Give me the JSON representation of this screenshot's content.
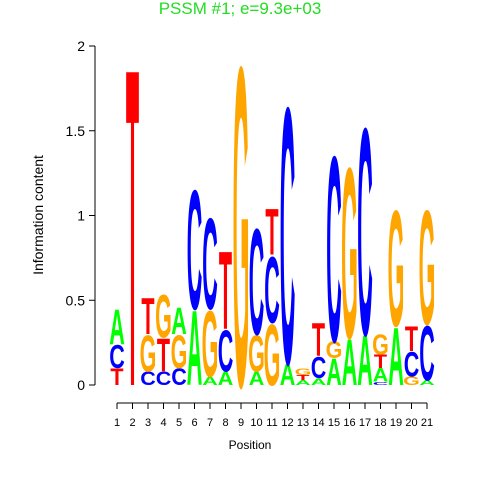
{
  "chart_data": {
    "type": "sequence-logo",
    "title": "PSSM #1; e=9.3e+03",
    "x_label": "Position",
    "y_label": "Information content",
    "xlim": [
      1,
      21
    ],
    "xticks": [
      1,
      2,
      3,
      4,
      5,
      6,
      7,
      8,
      9,
      10,
      11,
      12,
      13,
      14,
      15,
      16,
      17,
      18,
      19,
      20,
      21
    ],
    "ylim": [
      0,
      2
    ],
    "yticks": [
      0,
      0.5,
      1,
      1.5,
      2
    ],
    "letter_colors": {
      "A": "#00ff00",
      "C": "#0000ff",
      "G": "#ffa500",
      "T": "#ff0000"
    },
    "stacks": [
      {
        "letters": [
          "T",
          "C",
          "A"
        ],
        "values": [
          0.1,
          0.14,
          0.21
        ]
      },
      {
        "letters": [
          "T"
        ],
        "values": [
          1.92
        ]
      },
      {
        "letters": [
          "C",
          "G",
          "T"
        ],
        "values": [
          0.08,
          0.22,
          0.22
        ]
      },
      {
        "letters": [
          "C",
          "T",
          "G"
        ],
        "values": [
          0.08,
          0.2,
          0.26
        ]
      },
      {
        "letters": [
          "C",
          "G",
          "A"
        ],
        "values": [
          0.1,
          0.2,
          0.16
        ]
      },
      {
        "letters": [
          "A",
          "C"
        ],
        "values": [
          0.45,
          0.72
        ]
      },
      {
        "letters": [
          "A",
          "G",
          "C"
        ],
        "values": [
          0.05,
          0.4,
          0.55
        ]
      },
      {
        "letters": [
          "A",
          "C",
          "T"
        ],
        "values": [
          0.08,
          0.25,
          0.47
        ]
      },
      {
        "letters": [
          "G"
        ],
        "values": [
          1.93
        ]
      },
      {
        "letters": [
          "A",
          "G",
          "C"
        ],
        "values": [
          0.08,
          0.22,
          0.64
        ]
      },
      {
        "letters": [
          "G",
          "C",
          "T"
        ],
        "values": [
          0.37,
          0.4,
          0.28
        ]
      },
      {
        "letters": [
          "A",
          "C"
        ],
        "values": [
          0.13,
          1.55
        ]
      },
      {
        "letters": [
          "A",
          "T",
          "G"
        ],
        "values": [
          0.03,
          0.03,
          0.04
        ]
      },
      {
        "letters": [
          "A",
          "C",
          "T"
        ],
        "values": [
          0.04,
          0.13,
          0.2
        ]
      },
      {
        "letters": [
          "A",
          "G",
          "C"
        ],
        "values": [
          0.16,
          0.1,
          1.12
        ]
      },
      {
        "letters": [
          "A",
          "G"
        ],
        "values": [
          0.28,
          1.03
        ]
      },
      {
        "letters": [
          "A",
          "C"
        ],
        "values": [
          0.3,
          1.25
        ]
      },
      {
        "letters": [
          "C",
          "A",
          "T",
          "G"
        ],
        "values": [
          0.02,
          0.08,
          0.08,
          0.12
        ]
      },
      {
        "letters": [
          "A",
          "G"
        ],
        "values": [
          0.35,
          0.7
        ]
      },
      {
        "letters": [
          "G",
          "C",
          "T"
        ],
        "values": [
          0.05,
          0.15,
          0.15
        ]
      },
      {
        "letters": [
          "A",
          "C",
          "G"
        ],
        "values": [
          0.03,
          0.33,
          0.69
        ]
      }
    ]
  }
}
